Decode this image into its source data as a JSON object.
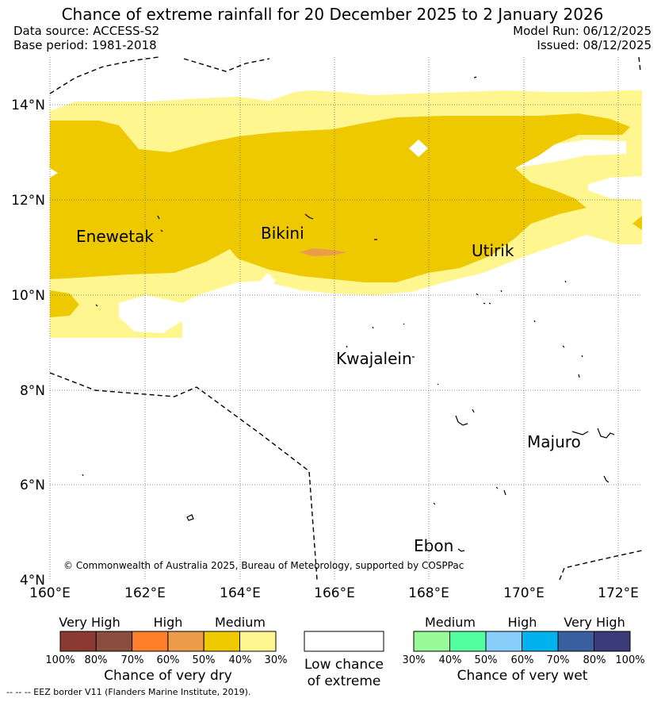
{
  "header": {
    "title": "Chance of extreme rainfall for 20 December 2025 to 2 January 2026",
    "data_source": "Data source: ACCESS-S2",
    "base_period": "Base period: 1981-2018",
    "model_run": "Model Run: 06/12/2025",
    "issued": "Issued: 08/12/2025"
  },
  "map": {
    "lon_range": [
      160,
      172.5
    ],
    "lat_range": [
      4,
      15
    ],
    "lon_ticks": [
      "160°E",
      "162°E",
      "164°E",
      "166°E",
      "168°E",
      "170°E",
      "172°E"
    ],
    "lat_ticks": [
      "4°N",
      "6°N",
      "8°N",
      "10°N",
      "12°N",
      "14°N"
    ],
    "gridlines": "dotted",
    "places": [
      {
        "name": "Enewetak",
        "lon": 162.2,
        "lat": 11.3
      },
      {
        "name": "Bikini",
        "lon": 165.5,
        "lat": 11.6
      },
      {
        "name": "Utirik",
        "lon": 169.8,
        "lat": 10.9
      },
      {
        "name": "Kwajalein",
        "lon": 167.7,
        "lat": 8.7
      },
      {
        "name": "Majuro",
        "lon": 171.2,
        "lat": 7.1
      },
      {
        "name": "Ebon",
        "lon": 168.5,
        "lat": 4.6
      }
    ],
    "copyright": "© Commonwealth of Australia 2025, Bureau of Meteorology, supported by COSPPac"
  },
  "colorbars": {
    "dry": {
      "title": "Chance of very dry",
      "headers": [
        "Very High",
        "High",
        "Medium"
      ],
      "ticks": [
        "100%",
        "80%",
        "70%",
        "60%",
        "50%",
        "40%",
        "30%"
      ],
      "colors": [
        "#8b3a32",
        "#8b4e3e",
        "#ff7f2a",
        "#ec9b4a",
        "#eec900",
        "#fff68f"
      ]
    },
    "neutral": {
      "line1": "Low chance",
      "line2": "of extreme",
      "color": "#ffffff"
    },
    "wet": {
      "title": "Chance of very wet",
      "headers": [
        "Medium",
        "High",
        "Very High"
      ],
      "ticks": [
        "30%",
        "40%",
        "50%",
        "60%",
        "70%",
        "80%",
        "100%"
      ],
      "colors": [
        "#98fb98",
        "#54ff9f",
        "#87cefa",
        "#00b2ee",
        "#3a5f9e",
        "#3b3b7a"
      ]
    }
  },
  "footnote": "--  --  -- EEZ border V11 (Flanders Marine Institute, 2019)."
}
